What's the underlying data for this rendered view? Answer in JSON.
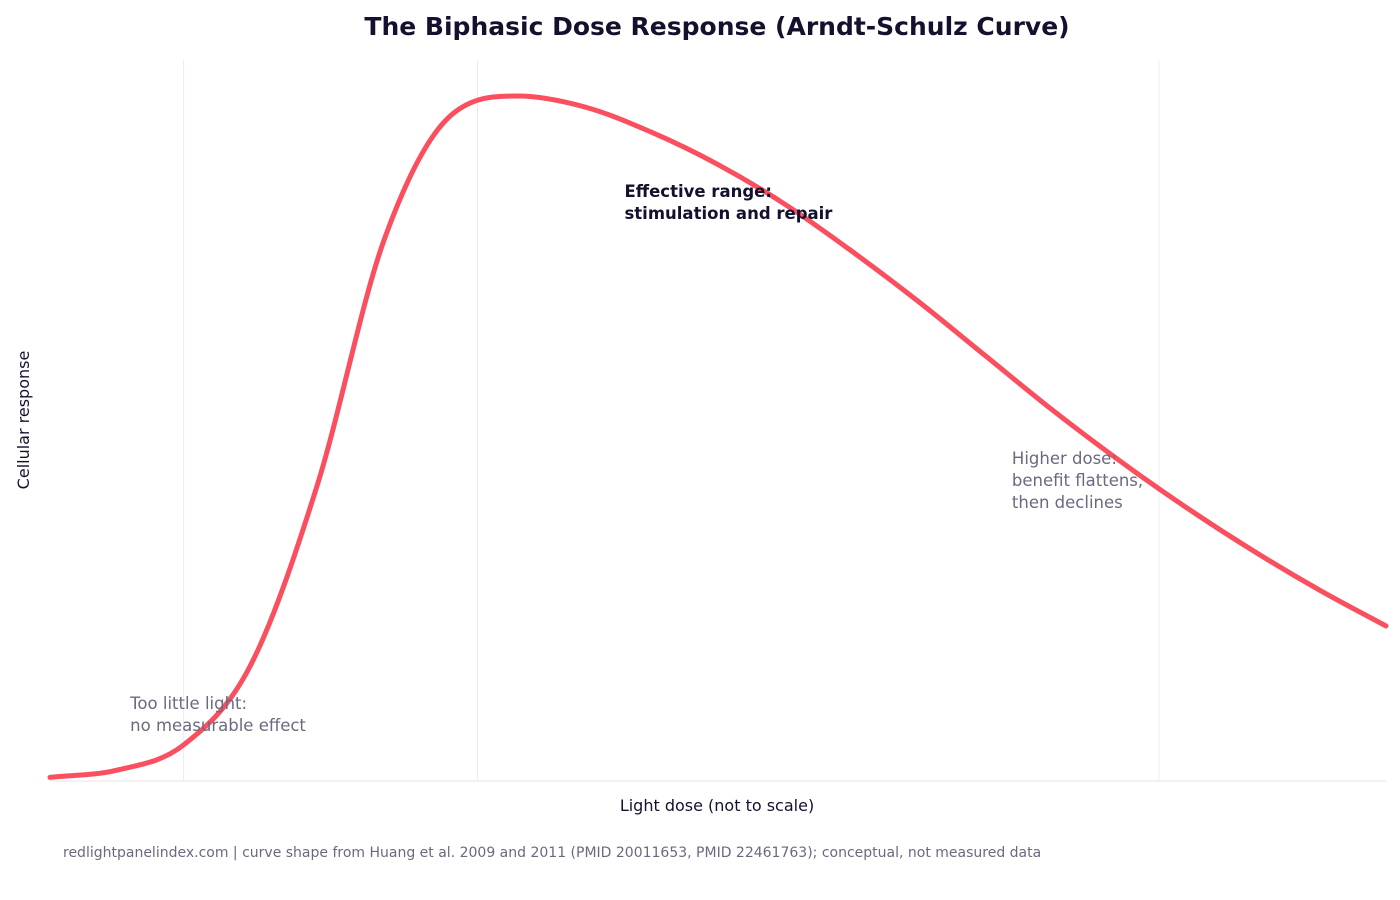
{
  "chart_data": {
    "type": "line",
    "title": "The Biphasic Dose Response (Arndt-Schulz Curve)",
    "xlabel": "Light dose (not to scale)",
    "ylabel": "Cellular response",
    "xlim": [
      0,
      10
    ],
    "ylim": [
      0,
      1
    ],
    "grid": {
      "x": true,
      "y": false
    },
    "x_tick_labels_shown": false,
    "y_tick_labels_shown": false,
    "series": [
      {
        "color": "#f94f5f",
        "x": [
          0,
          0.5,
          1.0,
          1.5,
          2.0,
          2.5,
          3.0,
          3.5,
          4.0,
          4.5,
          5.0,
          5.5,
          6.0,
          6.5,
          7.0,
          7.5,
          8.0,
          8.5,
          9.0,
          9.5,
          10.0
        ],
        "y": [
          0.005,
          0.015,
          0.05,
          0.16,
          0.41,
          0.75,
          0.923,
          0.95,
          0.935,
          0.9,
          0.855,
          0.8,
          0.735,
          0.665,
          0.59,
          0.515,
          0.445,
          0.38,
          0.32,
          0.265,
          0.215
        ]
      }
    ],
    "annotations": [
      {
        "id": "low",
        "lines": [
          "Too little light:",
          "no measurable effect"
        ],
        "x": 0.6,
        "y": 0.1,
        "style": "muted"
      },
      {
        "id": "effective",
        "lines": [
          "Effective range:",
          "stimulation and repair"
        ],
        "x": 4.3,
        "y": 0.81,
        "style": "strong"
      },
      {
        "id": "high",
        "lines": [
          "Higher dose:",
          "benefit flattens,",
          "then declines"
        ],
        "x": 7.2,
        "y": 0.44,
        "style": "muted"
      }
    ],
    "x_gridlines": [
      1.0,
      3.2,
      8.3
    ]
  },
  "footer": {
    "source": "redlightpanelindex.com | curve shape from Huang et al. 2009 and 2011 (PMID 20011653, PMID 22461763); conceptual, not measured data"
  }
}
